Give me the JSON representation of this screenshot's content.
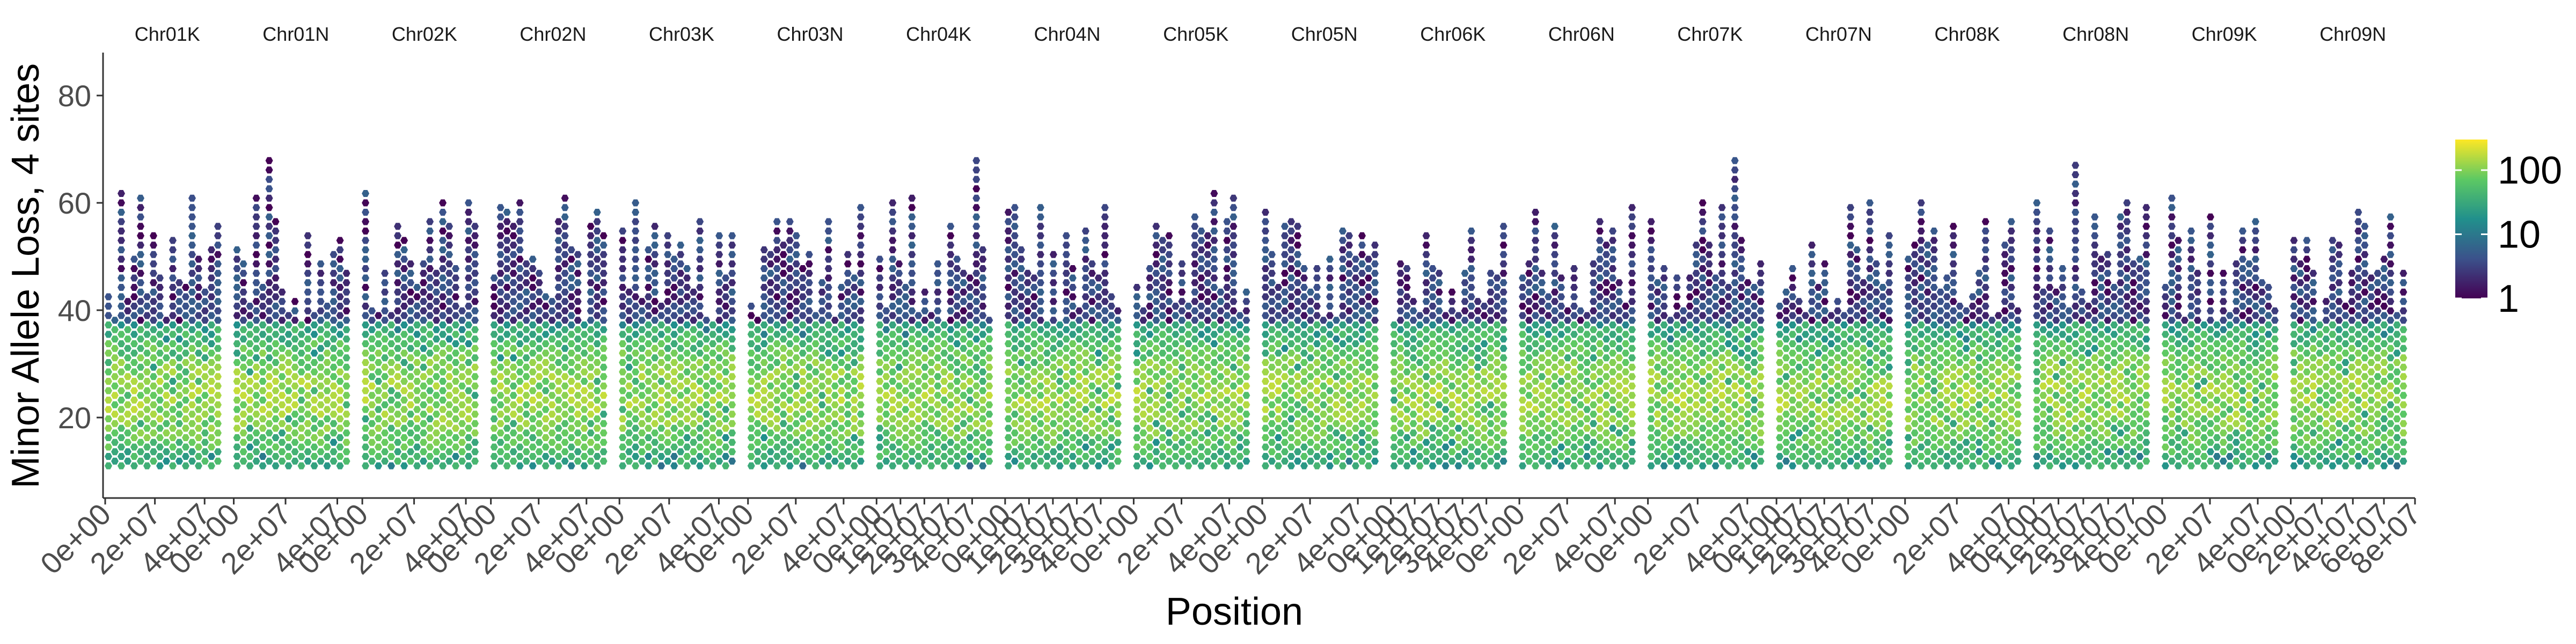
{
  "chart_data": {
    "type": "heatmap",
    "subtype": "hexbin-faceted",
    "title": "",
    "xlabel": "Position",
    "ylabel": "Minor Allele Loss, 4 sites",
    "ylim": [
      5,
      88
    ],
    "yticks": [
      20,
      40,
      60,
      80
    ],
    "y_tick_labels": [
      "20",
      "40",
      "60",
      "80"
    ],
    "grid": false,
    "legend": {
      "placement": "right",
      "scale": "log10",
      "palette": "viridis",
      "colors": [
        "#440154",
        "#3b528b",
        "#21908c",
        "#5dc963",
        "#fde725"
      ],
      "ticks": [
        1,
        10,
        100
      ],
      "tick_labels": [
        "1",
        "10",
        "100"
      ],
      "range": [
        1,
        300
      ]
    },
    "panels": [
      {
        "name": "Chr01K",
        "xlim": [
          0,
          50000000
        ],
        "x_tick_labels": [
          "0e+00",
          "2e+07",
          "4e+07"
        ]
      },
      {
        "name": "Chr01N",
        "xlim": [
          0,
          48000000
        ],
        "x_tick_labels": [
          "0e+00",
          "2e+07",
          "4e+07"
        ]
      },
      {
        "name": "Chr02K",
        "xlim": [
          0,
          48000000
        ],
        "x_tick_labels": [
          "0e+00",
          "2e+07",
          "4e+07"
        ]
      },
      {
        "name": "Chr02N",
        "xlim": [
          0,
          52000000
        ],
        "x_tick_labels": [
          "0e+00",
          "2e+07",
          "4e+07"
        ]
      },
      {
        "name": "Chr03K",
        "xlim": [
          0,
          50000000
        ],
        "x_tick_labels": [
          "0e+00",
          "2e+07",
          "4e+07"
        ]
      },
      {
        "name": "Chr03N",
        "xlim": [
          0,
          52000000
        ],
        "x_tick_labels": [
          "0e+00",
          "2e+07",
          "4e+07"
        ]
      },
      {
        "name": "Chr04K",
        "xlim": [
          0,
          52000000
        ],
        "x_tick_labels": [
          "0e+00",
          "1e+07",
          "2e+07",
          "3e+07",
          "4e+07"
        ]
      },
      {
        "name": "Chr04N",
        "xlim": [
          0,
          52000000
        ],
        "x_tick_labels": [
          "0e+00",
          "1e+07",
          "2e+07",
          "3e+07",
          "4e+07"
        ]
      },
      {
        "name": "Chr05K",
        "xlim": [
          0,
          52000000
        ],
        "x_tick_labels": [
          "0e+00",
          "2e+07",
          "4e+07"
        ]
      },
      {
        "name": "Chr05N",
        "xlim": [
          0,
          52000000
        ],
        "x_tick_labels": [
          "0e+00",
          "2e+07",
          "4e+07"
        ]
      },
      {
        "name": "Chr06K",
        "xlim": [
          0,
          52000000
        ],
        "x_tick_labels": [
          "0e+00",
          "1e+07",
          "2e+07",
          "3e+07",
          "4e+07"
        ]
      },
      {
        "name": "Chr06N",
        "xlim": [
          0,
          52000000
        ],
        "x_tick_labels": [
          "0e+00",
          "2e+07",
          "4e+07"
        ]
      },
      {
        "name": "Chr07K",
        "xlim": [
          0,
          50000000
        ],
        "x_tick_labels": [
          "0e+00",
          "2e+07",
          "4e+07"
        ]
      },
      {
        "name": "Chr07N",
        "xlim": [
          0,
          52000000
        ],
        "x_tick_labels": [
          "0e+00",
          "1e+07",
          "2e+07",
          "3e+07",
          "4e+07"
        ]
      },
      {
        "name": "Chr08K",
        "xlim": [
          0,
          48000000
        ],
        "x_tick_labels": [
          "0e+00",
          "2e+07",
          "4e+07"
        ]
      },
      {
        "name": "Chr08N",
        "xlim": [
          0,
          50000000
        ],
        "x_tick_labels": [
          "0e+00",
          "1e+07",
          "2e+07",
          "3e+07",
          "4e+07"
        ]
      },
      {
        "name": "Chr09K",
        "xlim": [
          0,
          52000000
        ],
        "x_tick_labels": [
          "0e+00",
          "2e+07",
          "4e+07"
        ]
      },
      {
        "name": "Chr09N",
        "xlim": [
          0,
          80000000
        ],
        "x_tick_labels": [
          "0e+00",
          "2e+07",
          "4e+07",
          "6e+07",
          "8e+07"
        ]
      }
    ]
  }
}
